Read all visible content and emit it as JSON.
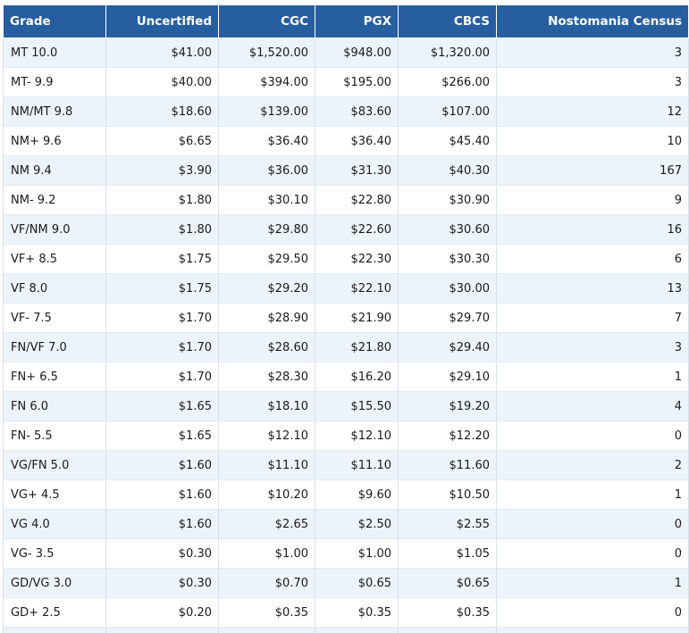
{
  "table": {
    "headers": {
      "grade": "Grade",
      "uncertified": "Uncertified",
      "cgc": "CGC",
      "pgx": "PGX",
      "cbcs": "CBCS",
      "census": "Nostomania Census"
    },
    "rows": [
      {
        "grade": "MT 10.0",
        "uncertified": "$41.00",
        "cgc": "$1,520.00",
        "pgx": "$948.00",
        "cbcs": "$1,320.00",
        "census": "3"
      },
      {
        "grade": "MT- 9.9",
        "uncertified": "$40.00",
        "cgc": "$394.00",
        "pgx": "$195.00",
        "cbcs": "$266.00",
        "census": "3"
      },
      {
        "grade": "NM/MT 9.8",
        "uncertified": "$18.60",
        "cgc": "$139.00",
        "pgx": "$83.60",
        "cbcs": "$107.00",
        "census": "12"
      },
      {
        "grade": "NM+ 9.6",
        "uncertified": "$6.65",
        "cgc": "$36.40",
        "pgx": "$36.40",
        "cbcs": "$45.40",
        "census": "10"
      },
      {
        "grade": "NM 9.4",
        "uncertified": "$3.90",
        "cgc": "$36.00",
        "pgx": "$31.30",
        "cbcs": "$40.30",
        "census": "167"
      },
      {
        "grade": "NM- 9.2",
        "uncertified": "$1.80",
        "cgc": "$30.10",
        "pgx": "$22.80",
        "cbcs": "$30.90",
        "census": "9"
      },
      {
        "grade": "VF/NM 9.0",
        "uncertified": "$1.80",
        "cgc": "$29.80",
        "pgx": "$22.60",
        "cbcs": "$30.60",
        "census": "16"
      },
      {
        "grade": "VF+ 8.5",
        "uncertified": "$1.75",
        "cgc": "$29.50",
        "pgx": "$22.30",
        "cbcs": "$30.30",
        "census": "6"
      },
      {
        "grade": "VF 8.0",
        "uncertified": "$1.75",
        "cgc": "$29.20",
        "pgx": "$22.10",
        "cbcs": "$30.00",
        "census": "13"
      },
      {
        "grade": "VF- 7.5",
        "uncertified": "$1.70",
        "cgc": "$28.90",
        "pgx": "$21.90",
        "cbcs": "$29.70",
        "census": "7"
      },
      {
        "grade": "FN/VF 7.0",
        "uncertified": "$1.70",
        "cgc": "$28.60",
        "pgx": "$21.80",
        "cbcs": "$29.40",
        "census": "3"
      },
      {
        "grade": "FN+ 6.5",
        "uncertified": "$1.70",
        "cgc": "$28.30",
        "pgx": "$16.20",
        "cbcs": "$29.10",
        "census": "1"
      },
      {
        "grade": "FN 6.0",
        "uncertified": "$1.65",
        "cgc": "$18.10",
        "pgx": "$15.50",
        "cbcs": "$19.20",
        "census": "4"
      },
      {
        "grade": "FN- 5.5",
        "uncertified": "$1.65",
        "cgc": "$12.10",
        "pgx": "$12.10",
        "cbcs": "$12.20",
        "census": "0"
      },
      {
        "grade": "VG/FN 5.0",
        "uncertified": "$1.60",
        "cgc": "$11.10",
        "pgx": "$11.10",
        "cbcs": "$11.60",
        "census": "2"
      },
      {
        "grade": "VG+ 4.5",
        "uncertified": "$1.60",
        "cgc": "$10.20",
        "pgx": "$9.60",
        "cbcs": "$10.50",
        "census": "1"
      },
      {
        "grade": "VG 4.0",
        "uncertified": "$1.60",
        "cgc": "$2.65",
        "pgx": "$2.50",
        "cbcs": "$2.55",
        "census": "0"
      },
      {
        "grade": "VG- 3.5",
        "uncertified": "$0.30",
        "cgc": "$1.00",
        "pgx": "$1.00",
        "cbcs": "$1.05",
        "census": "0"
      },
      {
        "grade": "GD/VG 3.0",
        "uncertified": "$0.30",
        "cgc": "$0.70",
        "pgx": "$0.65",
        "cbcs": "$0.65",
        "census": "1"
      },
      {
        "grade": "GD+ 2.5",
        "uncertified": "$0.20",
        "cgc": "$0.35",
        "pgx": "$0.35",
        "cbcs": "$0.35",
        "census": "0"
      },
      {
        "grade": "",
        "uncertified": "",
        "cgc": "",
        "pgx": "",
        "cbcs": "",
        "census": ""
      }
    ]
  },
  "colors": {
    "header_bg": "#265ea0",
    "header_text": "#ffffff",
    "row_alt_bg": "#edf3fa",
    "row_bg": "#ffffff"
  }
}
